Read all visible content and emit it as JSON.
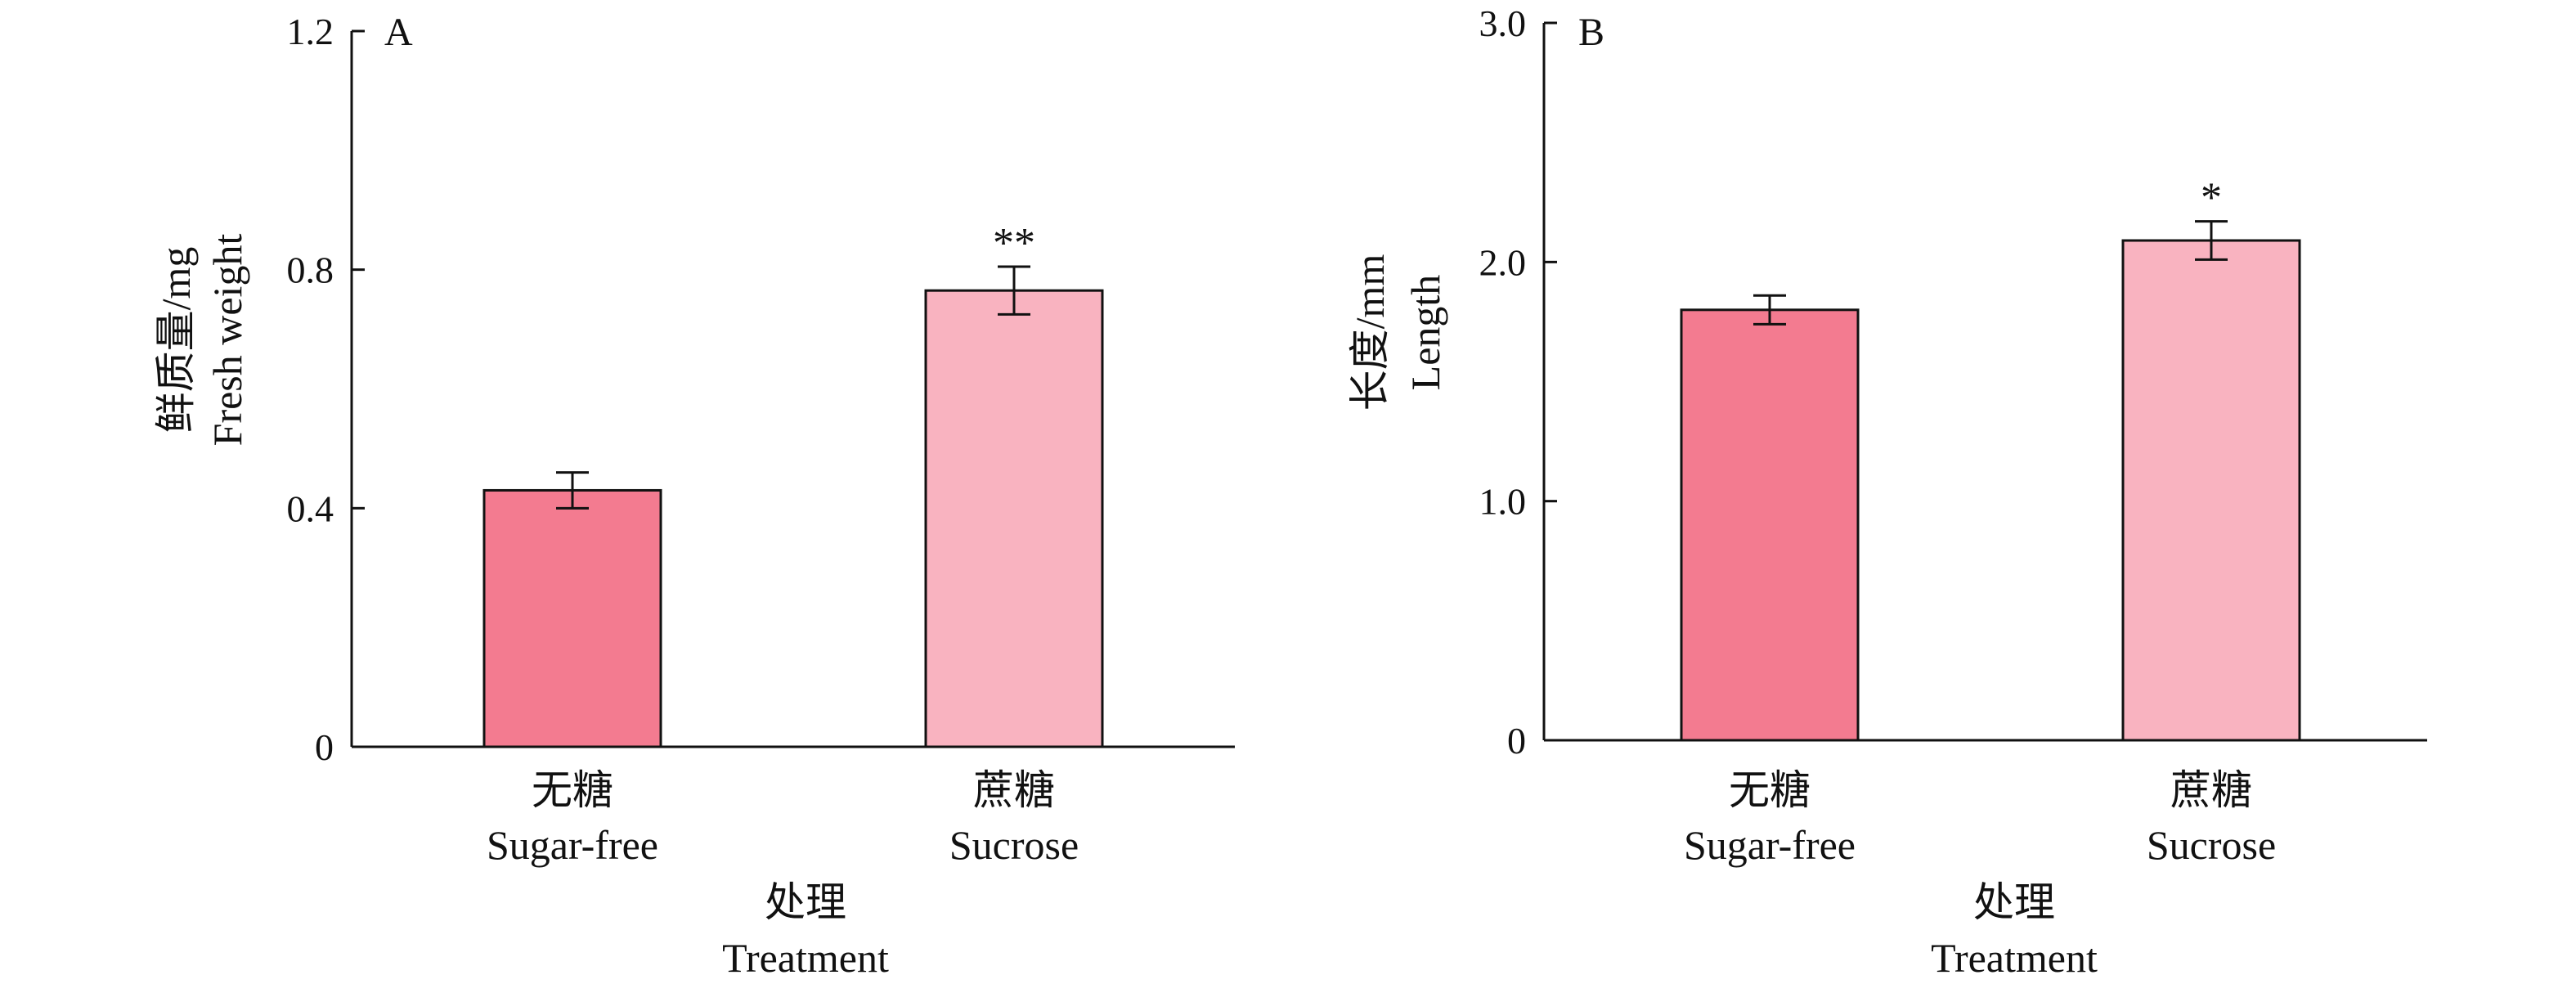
{
  "chart_data": [
    {
      "type": "bar",
      "panel": "A",
      "categories": [
        {
          "zh": "无糖",
          "en": "Sugar-free"
        },
        {
          "zh": "蔗糖",
          "en": "Sucrose"
        }
      ],
      "values": [
        0.43,
        0.765
      ],
      "errors": [
        0.03,
        0.04
      ],
      "significance": [
        "",
        "**"
      ],
      "ylabel_zh": "鲜质量/mg",
      "ylabel_en": "Fresh weight",
      "xlabel_zh": "处理",
      "xlabel_en": "Treatment",
      "ylim": [
        0,
        1.2
      ],
      "yticks": [
        0,
        0.4,
        0.8,
        1.2
      ],
      "ytick_labels": [
        "0",
        "0.4",
        "0.8",
        "1.2"
      ],
      "colors": [
        "#f37b90",
        "#f9b3c0"
      ]
    },
    {
      "type": "bar",
      "panel": "B",
      "categories": [
        {
          "zh": "无糖",
          "en": "Sugar-free"
        },
        {
          "zh": "蔗糖",
          "en": "Sucrose"
        }
      ],
      "values": [
        1.8,
        2.09
      ],
      "errors": [
        0.06,
        0.08
      ],
      "significance": [
        "",
        "*"
      ],
      "ylabel_zh": "长度/mm",
      "ylabel_en": "Length",
      "xlabel_zh": "处理",
      "xlabel_en": "Treatment",
      "ylim": [
        0,
        3.0
      ],
      "yticks": [
        0,
        1.0,
        2.0,
        3.0
      ],
      "ytick_labels": [
        "0",
        "1.0",
        "2.0",
        "3.0"
      ],
      "colors": [
        "#f37b90",
        "#f9b3c0"
      ]
    }
  ]
}
